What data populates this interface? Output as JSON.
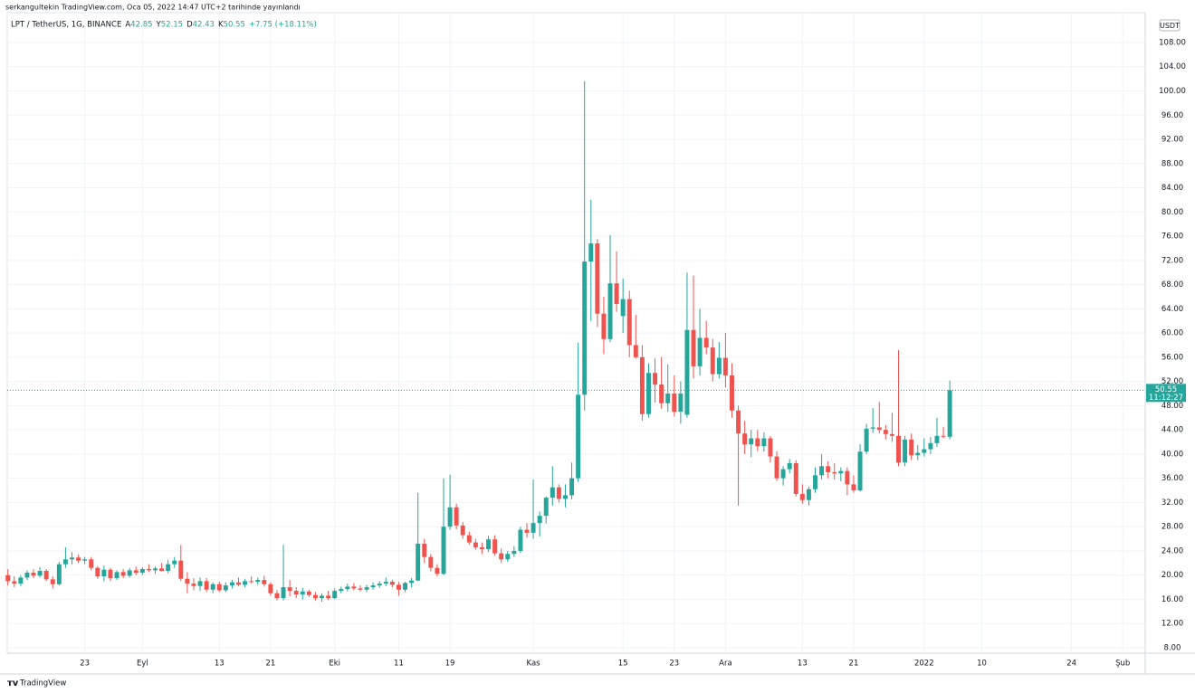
{
  "page_title": "serkangultekin TradingView.com, Oca 05, 2022 14:47 UTC+2 tarihinde yayınlandı",
  "footer": "TradingView",
  "chart_data": {
    "type": "candlestick",
    "symbol": "LPT / TetherUS, 1G, BINANCE",
    "ohlc_keys": [
      "A",
      "Y",
      "D",
      "K"
    ],
    "change_label": "+7.75 (+18.11%)",
    "currency": "USDT",
    "countdown": "11:12:27",
    "up_color": "#26a69a",
    "down_color": "#ef5350",
    "grid": true,
    "xlim": [
      -0.1,
      177.5
    ],
    "ylim": [
      7.1,
      112.93
    ],
    "xticks": [
      {
        "value": 12,
        "label": "23"
      },
      {
        "value": 21,
        "label": "Eyl"
      },
      {
        "value": 33,
        "label": "13"
      },
      {
        "value": 41,
        "label": "21"
      },
      {
        "value": 51,
        "label": "Eki"
      },
      {
        "value": 61,
        "label": "11"
      },
      {
        "value": 69,
        "label": "19"
      },
      {
        "value": 82,
        "label": "Kas"
      },
      {
        "value": 96,
        "label": "15"
      },
      {
        "value": 104,
        "label": "23"
      },
      {
        "value": 112,
        "label": "Ara"
      },
      {
        "value": 124,
        "label": "13"
      },
      {
        "value": 132,
        "label": "21"
      },
      {
        "value": 143,
        "label": "2022"
      },
      {
        "value": 152,
        "label": "10"
      },
      {
        "value": 166,
        "label": "24"
      },
      {
        "value": 174,
        "label": "Şub"
      }
    ],
    "yticks": [
      {
        "value": 8,
        "label": "8.00"
      },
      {
        "value": 12,
        "label": "12.00"
      },
      {
        "value": 16,
        "label": "16.00"
      },
      {
        "value": 20,
        "label": "20.00"
      },
      {
        "value": 24,
        "label": "24.00"
      },
      {
        "value": 28,
        "label": "28.00"
      },
      {
        "value": 32,
        "label": "32.00"
      },
      {
        "value": 36,
        "label": "36.00"
      },
      {
        "value": 40,
        "label": "40.00"
      },
      {
        "value": 44,
        "label": "44.00"
      },
      {
        "value": 48,
        "label": "48.00"
      },
      {
        "value": 52,
        "label": "52.00"
      },
      {
        "value": 56,
        "label": "56.00"
      },
      {
        "value": 60,
        "label": "60.00"
      },
      {
        "value": 64,
        "label": "64.00"
      },
      {
        "value": 68,
        "label": "68.00"
      },
      {
        "value": 72,
        "label": "72.00"
      },
      {
        "value": 76,
        "label": "76.00"
      },
      {
        "value": 80,
        "label": "80.00"
      },
      {
        "value": 84,
        "label": "84.00"
      },
      {
        "value": 88,
        "label": "88.00"
      },
      {
        "value": 92,
        "label": "92.00"
      },
      {
        "value": 96,
        "label": "96.00"
      },
      {
        "value": 100,
        "label": "100.00"
      },
      {
        "value": 104,
        "label": "104.00"
      },
      {
        "value": 108,
        "label": "108.00"
      }
    ],
    "ohlc": [
      [
        20.0,
        21.0,
        18.3,
        19.0
      ],
      [
        19.0,
        19.8,
        18.0,
        18.6
      ],
      [
        18.6,
        20.0,
        18.2,
        19.6
      ],
      [
        19.6,
        20.8,
        19.2,
        20.4
      ],
      [
        20.4,
        21.0,
        19.5,
        19.9
      ],
      [
        19.9,
        21.3,
        19.6,
        20.7
      ],
      [
        20.7,
        21.0,
        19.0,
        19.3
      ],
      [
        19.3,
        19.8,
        17.8,
        18.5
      ],
      [
        18.5,
        22.2,
        18.3,
        21.8
      ],
      [
        21.8,
        24.6,
        21.2,
        22.6
      ],
      [
        22.6,
        23.8,
        21.8,
        22.9
      ],
      [
        22.9,
        23.4,
        22.0,
        22.4
      ],
      [
        22.4,
        23.0,
        21.8,
        22.6
      ],
      [
        22.6,
        23.0,
        20.8,
        21.2
      ],
      [
        21.2,
        21.5,
        19.4,
        19.8
      ],
      [
        19.8,
        21.6,
        19.0,
        20.9
      ],
      [
        20.9,
        21.2,
        19.0,
        19.5
      ],
      [
        19.5,
        20.8,
        19.2,
        20.5
      ],
      [
        20.5,
        21.0,
        19.5,
        19.9
      ],
      [
        19.9,
        21.2,
        19.6,
        20.8
      ],
      [
        20.8,
        21.4,
        20.0,
        20.4
      ],
      [
        20.4,
        21.3,
        20.0,
        21.0
      ],
      [
        21.0,
        21.8,
        20.5,
        20.8
      ],
      [
        20.8,
        21.4,
        20.2,
        21.1
      ],
      [
        21.1,
        22.0,
        20.6,
        20.7
      ],
      [
        20.7,
        22.5,
        20.3,
        21.8
      ],
      [
        21.8,
        23.0,
        21.2,
        22.4
      ],
      [
        22.4,
        25.0,
        19.0,
        19.4
      ],
      [
        19.4,
        20.5,
        17.0,
        18.6
      ],
      [
        18.6,
        19.5,
        17.5,
        18.2
      ],
      [
        18.2,
        19.6,
        17.4,
        19.0
      ],
      [
        19.0,
        19.5,
        17.2,
        17.6
      ],
      [
        17.6,
        18.8,
        17.0,
        18.5
      ],
      [
        18.5,
        18.9,
        17.2,
        17.5
      ],
      [
        17.5,
        18.8,
        17.2,
        18.3
      ],
      [
        18.3,
        19.2,
        17.8,
        18.8
      ],
      [
        18.8,
        19.6,
        18.2,
        18.4
      ],
      [
        18.4,
        19.4,
        18.0,
        19.0
      ],
      [
        19.0,
        19.8,
        18.6,
        18.9
      ],
      [
        18.9,
        19.6,
        18.4,
        19.2
      ],
      [
        19.2,
        19.9,
        18.1,
        18.5
      ],
      [
        18.5,
        18.8,
        16.6,
        17.0
      ],
      [
        17.0,
        17.5,
        15.8,
        16.2
      ],
      [
        16.2,
        25.0,
        15.8,
        18.0
      ],
      [
        18.0,
        19.2,
        16.5,
        17.4
      ],
      [
        17.4,
        18.0,
        16.2,
        16.8
      ],
      [
        16.8,
        17.9,
        16.0,
        17.3
      ],
      [
        17.3,
        17.6,
        16.4,
        16.7
      ],
      [
        16.7,
        17.2,
        15.8,
        16.2
      ],
      [
        16.2,
        17.0,
        15.6,
        16.6
      ],
      [
        16.6,
        17.4,
        15.9,
        16.2
      ],
      [
        16.2,
        17.8,
        16.0,
        17.4
      ],
      [
        17.4,
        18.1,
        17.0,
        17.7
      ],
      [
        17.7,
        18.6,
        17.3,
        18.1
      ],
      [
        18.1,
        18.7,
        17.5,
        17.8
      ],
      [
        17.8,
        18.3,
        17.3,
        17.6
      ],
      [
        17.6,
        18.4,
        17.2,
        18.0
      ],
      [
        18.0,
        18.8,
        17.6,
        18.3
      ],
      [
        18.3,
        19.0,
        17.9,
        18.6
      ],
      [
        18.6,
        19.6,
        18.2,
        18.9
      ],
      [
        18.9,
        19.2,
        18.0,
        18.4
      ],
      [
        18.4,
        18.9,
        16.6,
        17.6
      ],
      [
        17.6,
        18.9,
        17.2,
        18.7
      ],
      [
        18.7,
        19.5,
        18.0,
        19.1
      ],
      [
        19.1,
        33.6,
        19.0,
        25.2
      ],
      [
        25.2,
        26.0,
        22.0,
        23.0
      ],
      [
        23.0,
        23.5,
        20.6,
        21.2
      ],
      [
        21.2,
        21.8,
        19.8,
        20.2
      ],
      [
        20.2,
        36.0,
        20.0,
        28.0
      ],
      [
        28.0,
        36.6,
        27.5,
        31.2
      ],
      [
        31.2,
        31.8,
        27.6,
        28.2
      ],
      [
        28.2,
        28.8,
        26.0,
        26.6
      ],
      [
        26.6,
        27.2,
        25.0,
        25.4
      ],
      [
        25.4,
        26.0,
        24.2,
        24.6
      ],
      [
        24.6,
        25.4,
        23.5,
        24.3
      ],
      [
        24.3,
        26.5,
        23.8,
        25.9
      ],
      [
        25.9,
        26.6,
        23.2,
        23.6
      ],
      [
        23.6,
        24.4,
        22.0,
        22.6
      ],
      [
        22.6,
        24.0,
        22.2,
        23.5
      ],
      [
        23.5,
        24.8,
        23.0,
        24.0
      ],
      [
        24.0,
        28.0,
        23.7,
        27.5
      ],
      [
        27.5,
        28.6,
        26.2,
        27.0
      ],
      [
        27.0,
        35.8,
        26.0,
        28.6
      ],
      [
        28.6,
        30.5,
        26.4,
        29.8
      ],
      [
        29.8,
        33.0,
        28.5,
        32.8
      ],
      [
        32.8,
        38.0,
        31.5,
        34.5
      ],
      [
        34.5,
        35.0,
        32.0,
        32.6
      ],
      [
        32.6,
        35.0,
        31.2,
        33.2
      ],
      [
        33.2,
        38.6,
        32.5,
        36.0
      ],
      [
        36.0,
        58.4,
        35.4,
        49.8
      ],
      [
        49.8,
        101.6,
        47.2,
        71.8
      ],
      [
        71.8,
        82.0,
        62.0,
        74.8
      ],
      [
        74.8,
        75.5,
        61.0,
        63.2
      ],
      [
        63.2,
        66.0,
        56.5,
        59.0
      ],
      [
        59.0,
        76.2,
        58.5,
        68.2
      ],
      [
        68.2,
        73.5,
        63.5,
        64.8
      ],
      [
        62.8,
        69.0,
        60.0,
        65.6
      ],
      [
        65.6,
        67.0,
        56.0,
        58.0
      ],
      [
        58.0,
        63.0,
        55.8,
        56.0
      ],
      [
        56.0,
        58.0,
        45.5,
        46.6
      ],
      [
        46.6,
        55.0,
        46.0,
        53.4
      ],
      [
        53.4,
        55.8,
        48.5,
        51.5
      ],
      [
        51.5,
        56.0,
        47.5,
        48.4
      ],
      [
        48.4,
        54.8,
        47.0,
        50.0
      ],
      [
        50.0,
        53.0,
        46.2,
        47.0
      ],
      [
        47.0,
        52.0,
        45.0,
        50.0
      ],
      [
        46.5,
        70.0,
        46.0,
        60.5
      ],
      [
        60.5,
        69.5,
        52.5,
        54.5
      ],
      [
        54.5,
        64.0,
        53.0,
        59.2
      ],
      [
        59.2,
        62.0,
        56.5,
        57.6
      ],
      [
        57.6,
        59.0,
        52.0,
        53.2
      ],
      [
        53.2,
        58.5,
        52.5,
        55.9
      ],
      [
        55.9,
        60.0,
        51.0,
        53.0
      ],
      [
        53.0,
        55.0,
        46.0,
        47.2
      ],
      [
        47.2,
        48.0,
        31.5,
        43.4
      ],
      [
        43.4,
        45.5,
        40.0,
        41.6
      ],
      [
        41.6,
        44.0,
        39.5,
        42.6
      ],
      [
        42.6,
        44.0,
        40.5,
        41.3
      ],
      [
        41.3,
        43.6,
        40.4,
        42.6
      ],
      [
        42.6,
        43.0,
        38.6,
        39.6
      ],
      [
        39.6,
        40.5,
        35.6,
        36.0
      ],
      [
        36.0,
        38.0,
        34.8,
        37.5
      ],
      [
        37.5,
        39.2,
        36.8,
        38.5
      ],
      [
        38.5,
        39.0,
        33.0,
        33.4
      ],
      [
        33.4,
        35.0,
        31.8,
        32.4
      ],
      [
        32.4,
        34.6,
        31.5,
        34.2
      ],
      [
        34.2,
        37.8,
        33.6,
        36.5
      ],
      [
        36.5,
        40.0,
        35.8,
        38.0
      ],
      [
        38.0,
        38.8,
        36.0,
        37.0
      ],
      [
        37.0,
        38.5,
        35.8,
        36.8
      ],
      [
        36.8,
        37.8,
        35.5,
        37.2
      ],
      [
        37.2,
        37.8,
        33.2,
        35.0
      ],
      [
        35.0,
        36.5,
        33.6,
        34.0
      ],
      [
        34.0,
        41.6,
        33.8,
        40.4
      ],
      [
        40.4,
        45.0,
        40.0,
        44.2
      ],
      [
        44.2,
        47.6,
        43.5,
        44.4
      ],
      [
        44.4,
        48.6,
        43.4,
        44.0
      ],
      [
        44.0,
        44.8,
        42.4,
        43.3
      ],
      [
        43.3,
        46.8,
        42.0,
        43.0
      ],
      [
        43.0,
        57.2,
        38.0,
        38.6
      ],
      [
        38.6,
        43.0,
        38.0,
        42.4
      ],
      [
        42.4,
        43.4,
        39.0,
        39.8
      ],
      [
        39.8,
        41.5,
        39.0,
        40.2
      ],
      [
        40.2,
        42.6,
        39.6,
        40.8
      ],
      [
        40.8,
        42.8,
        40.0,
        41.8
      ],
      [
        41.8,
        46.0,
        41.2,
        43.0
      ],
      [
        43.0,
        44.5,
        42.6,
        42.85
      ],
      [
        42.85,
        52.15,
        42.43,
        50.55
      ]
    ]
  }
}
